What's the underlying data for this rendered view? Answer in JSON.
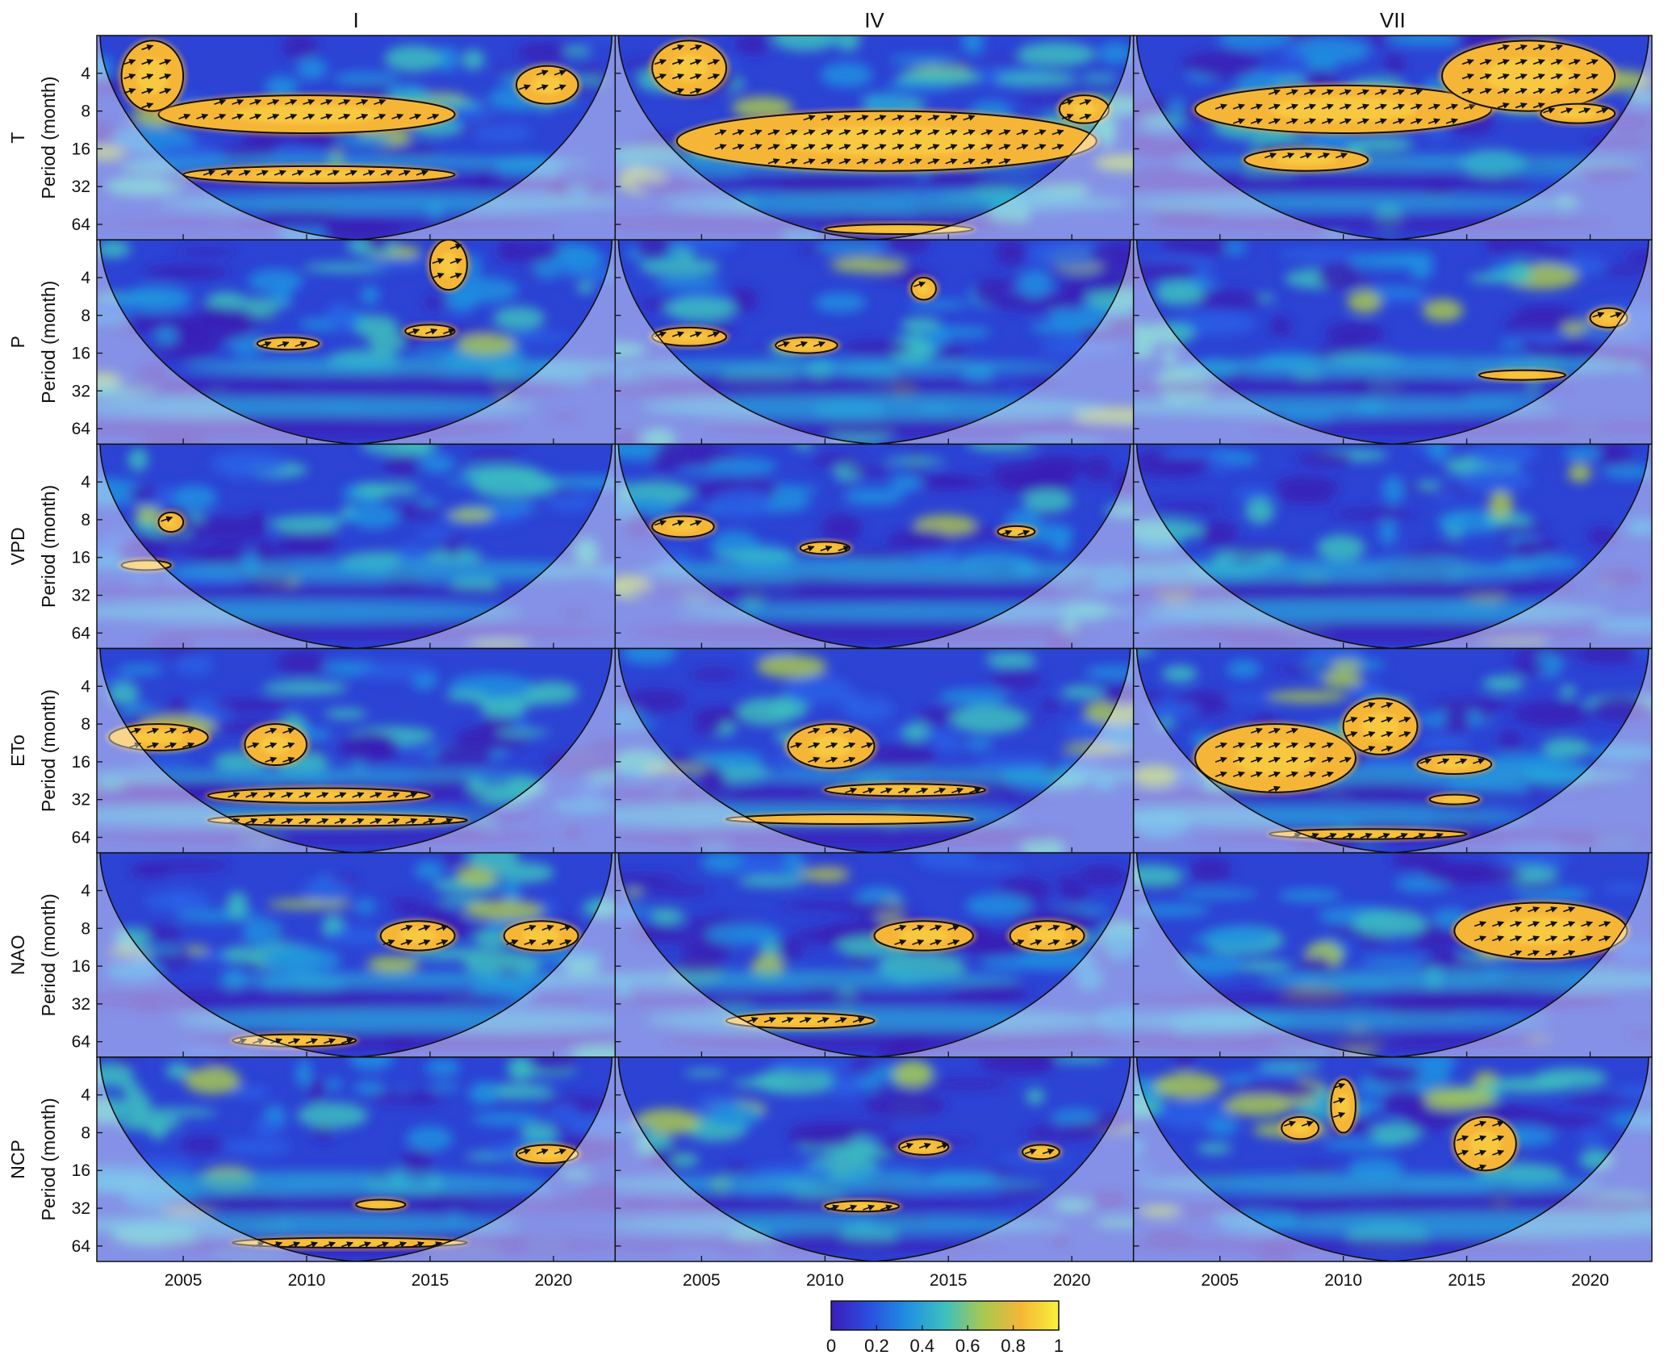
{
  "chart_data": {
    "type": "heatmap",
    "description_kind": "wavelet coherence grid",
    "columns": [
      "I",
      "IV",
      "VII"
    ],
    "rows": [
      "T",
      "P",
      "VPD",
      "ETo",
      "NAO",
      "NCP"
    ],
    "ylabel": "Period (month)",
    "y_ticks": [
      4,
      8,
      16,
      32,
      64
    ],
    "y_scale": "log2",
    "y_range": [
      2,
      85
    ],
    "x_ticks": [
      2005,
      2010,
      2015,
      2020
    ],
    "x_range": [
      2001.5,
      2022.5
    ],
    "colorbar": {
      "ticks": [
        "0",
        "0.2",
        "0.4",
        "0.6",
        "0.8",
        "1"
      ],
      "range": [
        0,
        1
      ],
      "colors": [
        "#3b1cb8",
        "#2a4fe0",
        "#1f8fe0",
        "#3cc0c0",
        "#a8c850",
        "#f5b638",
        "#f8f23a"
      ]
    },
    "significant_regions": [
      {
        "row": "T",
        "col": "I",
        "regions": [
          {
            "x": [
              2004,
              2016
            ],
            "y": [
              6,
              12
            ]
          },
          {
            "x": [
              2005,
              2016
            ],
            "y": [
              22,
              30
            ]
          },
          {
            "x": [
              2002.5,
              2005
            ],
            "y": [
              2.2,
              8
            ]
          },
          {
            "x": [
              2018.5,
              2021
            ],
            "y": [
              3.5,
              7
            ]
          }
        ]
      },
      {
        "row": "T",
        "col": "IV",
        "regions": [
          {
            "x": [
              2004,
              2021
            ],
            "y": [
              8,
              24
            ]
          },
          {
            "x": [
              2003,
              2006
            ],
            "y": [
              2.2,
              6
            ]
          },
          {
            "x": [
              2019.5,
              2021.5
            ],
            "y": [
              6,
              10
            ]
          },
          {
            "x": [
              2010,
              2016
            ],
            "y": [
              66,
              74
            ]
          }
        ]
      },
      {
        "row": "T",
        "col": "VII",
        "regions": [
          {
            "x": [
              2004,
              2016
            ],
            "y": [
              5,
              12
            ]
          },
          {
            "x": [
              2006,
              2011
            ],
            "y": [
              16,
              24
            ]
          },
          {
            "x": [
              2014,
              2021
            ],
            "y": [
              2.2,
              8
            ]
          },
          {
            "x": [
              2018,
              2021
            ],
            "y": [
              7,
              10
            ]
          }
        ]
      },
      {
        "row": "P",
        "col": "I",
        "regions": [
          {
            "x": [
              2008,
              2010.5
            ],
            "y": [
              12,
              15
            ]
          },
          {
            "x": [
              2014,
              2016
            ],
            "y": [
              9.5,
              12
            ]
          },
          {
            "x": [
              2015,
              2016.5
            ],
            "y": [
              2,
              5
            ]
          }
        ]
      },
      {
        "row": "P",
        "col": "IV",
        "regions": [
          {
            "x": [
              2003,
              2006
            ],
            "y": [
              10,
              14
            ]
          },
          {
            "x": [
              2008,
              2010.5
            ],
            "y": [
              12,
              16
            ]
          },
          {
            "x": [
              2013.5,
              2014.5
            ],
            "y": [
              4,
              6
            ]
          }
        ]
      },
      {
        "row": "P",
        "col": "VII",
        "regions": [
          {
            "x": [
              2015.5,
              2019
            ],
            "y": [
              22,
              26
            ]
          },
          {
            "x": [
              2020,
              2021.5
            ],
            "y": [
              7,
              10
            ]
          }
        ]
      },
      {
        "row": "VPD",
        "col": "I",
        "regions": [
          {
            "x": [
              2004,
              2005
            ],
            "y": [
              7,
              10
            ]
          },
          {
            "x": [
              2002.5,
              2004.5
            ],
            "y": [
              17,
              20
            ]
          }
        ]
      },
      {
        "row": "VPD",
        "col": "IV",
        "regions": [
          {
            "x": [
              2003,
              2005.5
            ],
            "y": [
              7.5,
              11
            ]
          },
          {
            "x": [
              2009,
              2011
            ],
            "y": [
              12,
              15
            ]
          },
          {
            "x": [
              2017,
              2018.5
            ],
            "y": [
              9,
              11
            ]
          }
        ]
      },
      {
        "row": "VPD",
        "col": "VII",
        "regions": []
      },
      {
        "row": "ETo",
        "col": "I",
        "regions": [
          {
            "x": [
              2007.5,
              2010
            ],
            "y": [
              8,
              17
            ]
          },
          {
            "x": [
              2006,
              2015
            ],
            "y": [
              26,
              34
            ]
          },
          {
            "x": [
              2006,
              2016.5
            ],
            "y": [
              42,
              52
            ]
          },
          {
            "x": [
              2002,
              2006
            ],
            "y": [
              8,
              13
            ]
          }
        ]
      },
      {
        "row": "ETo",
        "col": "IV",
        "regions": [
          {
            "x": [
              2008.5,
              2012
            ],
            "y": [
              8,
              18
            ]
          },
          {
            "x": [
              2010,
              2016.5
            ],
            "y": [
              24,
              30
            ]
          },
          {
            "x": [
              2006,
              2016
            ],
            "y": [
              42,
              50
            ]
          }
        ]
      },
      {
        "row": "ETo",
        "col": "VII",
        "regions": [
          {
            "x": [
              2004,
              2010.5
            ],
            "y": [
              8,
              28
            ]
          },
          {
            "x": [
              2010,
              2013
            ],
            "y": [
              5,
              14
            ]
          },
          {
            "x": [
              2013,
              2016
            ],
            "y": [
              14,
              20
            ]
          },
          {
            "x": [
              2007,
              2015
            ],
            "y": [
              55,
              66
            ]
          },
          {
            "x": [
              2013.5,
              2015.5
            ],
            "y": [
              30,
              34
            ]
          }
        ]
      },
      {
        "row": "NAO",
        "col": "I",
        "regions": [
          {
            "x": [
              2013,
              2016
            ],
            "y": [
              7,
              12
            ]
          },
          {
            "x": [
              2018,
              2021
            ],
            "y": [
              7,
              12
            ]
          },
          {
            "x": [
              2007,
              2012
            ],
            "y": [
              56,
              70
            ]
          }
        ]
      },
      {
        "row": "NAO",
        "col": "IV",
        "regions": [
          {
            "x": [
              2012,
              2016
            ],
            "y": [
              7,
              12
            ]
          },
          {
            "x": [
              2017.5,
              2020.5
            ],
            "y": [
              7,
              12
            ]
          },
          {
            "x": [
              2006,
              2012
            ],
            "y": [
              38,
              50
            ]
          }
        ]
      },
      {
        "row": "NAO",
        "col": "VII",
        "regions": [
          {
            "x": [
              2014.5,
              2021.5
            ],
            "y": [
              5,
              14
            ]
          }
        ]
      },
      {
        "row": "NCP",
        "col": "I",
        "regions": [
          {
            "x": [
              2018.5,
              2021
            ],
            "y": [
              10,
              14
            ]
          },
          {
            "x": [
              2007,
              2016.5
            ],
            "y": [
              55,
              66
            ]
          },
          {
            "x": [
              2012,
              2014
            ],
            "y": [
              28,
              32
            ]
          }
        ]
      },
      {
        "row": "NCP",
        "col": "IV",
        "regions": [
          {
            "x": [
              2013,
              2015
            ],
            "y": [
              9,
              12
            ]
          },
          {
            "x": [
              2010,
              2013
            ],
            "y": [
              28,
              34
            ]
          },
          {
            "x": [
              2018,
              2019.5
            ],
            "y": [
              10,
              13
            ]
          }
        ]
      },
      {
        "row": "NCP",
        "col": "VII",
        "regions": [
          {
            "x": [
              2014.5,
              2017
            ],
            "y": [
              6,
              16
            ]
          },
          {
            "x": [
              2007.5,
              2009
            ],
            "y": [
              6,
              9
            ]
          },
          {
            "x": [
              2009.5,
              2010.5
            ],
            "y": [
              3,
              8
            ]
          }
        ]
      }
    ]
  }
}
